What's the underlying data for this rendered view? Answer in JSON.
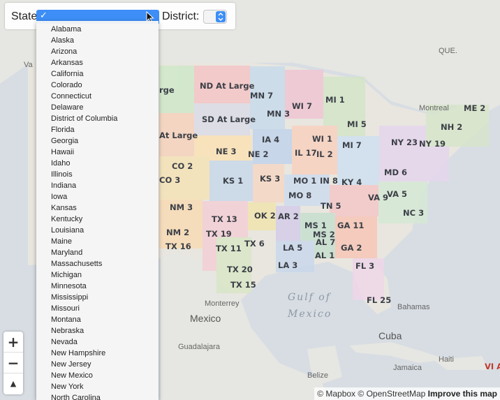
{
  "controls": {
    "state_label": "State:",
    "state_selected": "✓",
    "district_label": "District:"
  },
  "states": [
    "Alabama",
    "Alaska",
    "Arizona",
    "Arkansas",
    "California",
    "Colorado",
    "Connecticut",
    "Delaware",
    "District of Columbia",
    "Florida",
    "Georgia",
    "Hawaii",
    "Idaho",
    "Illinois",
    "Indiana",
    "Iowa",
    "Kansas",
    "Kentucky",
    "Louisiana",
    "Maine",
    "Maryland",
    "Massachusetts",
    "Michigan",
    "Minnesota",
    "Mississippi",
    "Missouri",
    "Montana",
    "Nebraska",
    "Nevada",
    "New Hampshire",
    "New Jersey",
    "New Mexico",
    "New York",
    "North Carolina"
  ],
  "districts": [
    "ND At Large",
    "SD At Large",
    "rge",
    "At Large",
    "MN 7",
    "MN 3",
    "WI 7",
    "MI 1",
    "MI 5",
    "ME 2",
    "NH 2",
    "NY 23",
    "NY 19",
    "IA 4",
    "WI 1",
    "MI 7",
    "IL 17",
    "IL 2",
    "NE 2",
    "NE 3",
    "CO 2",
    "CO 3",
    "KS 1",
    "KS 3",
    "MO 1",
    "IN 8",
    "KY 4",
    "MD 6",
    "VA 9",
    "VA 5",
    "MO 8",
    "TN 5",
    "NC 3",
    "OK 2",
    "AR 2",
    "NM 3",
    "NM 2",
    "TX 13",
    "TX 19",
    "TX 16",
    "TX 11",
    "TX 6",
    "MS 1",
    "MS 2",
    "GA 11",
    "AL 7",
    "GA 2",
    "LA 5",
    "AL 1",
    "LA 3",
    "FL 3",
    "TX 20",
    "TX 15",
    "FL 25",
    "VI At"
  ],
  "places": {
    "montreal": "Montreal",
    "que": "QUE.",
    "monterrey": "Monterrey",
    "mexico": "Mexico",
    "guadalajara": "Guadalajara",
    "gulf1": "Gulf of",
    "gulf2": "Mexico",
    "bahamas": "Bahamas",
    "cuba": "Cuba",
    "jamaica": "Jamaica",
    "haiti": "Haiti",
    "belize": "Belize",
    "va": "Va"
  },
  "zoom": {
    "plus": "+",
    "minus": "−",
    "compass": "▲"
  },
  "attribution": {
    "mapbox": "© Mapbox",
    "osm": "© OpenStreetMap",
    "improve": "Improve this map"
  },
  "colors": {
    "accent": "#3d8ef7",
    "water": "#d7dde3",
    "land": "#e9e9e6"
  }
}
